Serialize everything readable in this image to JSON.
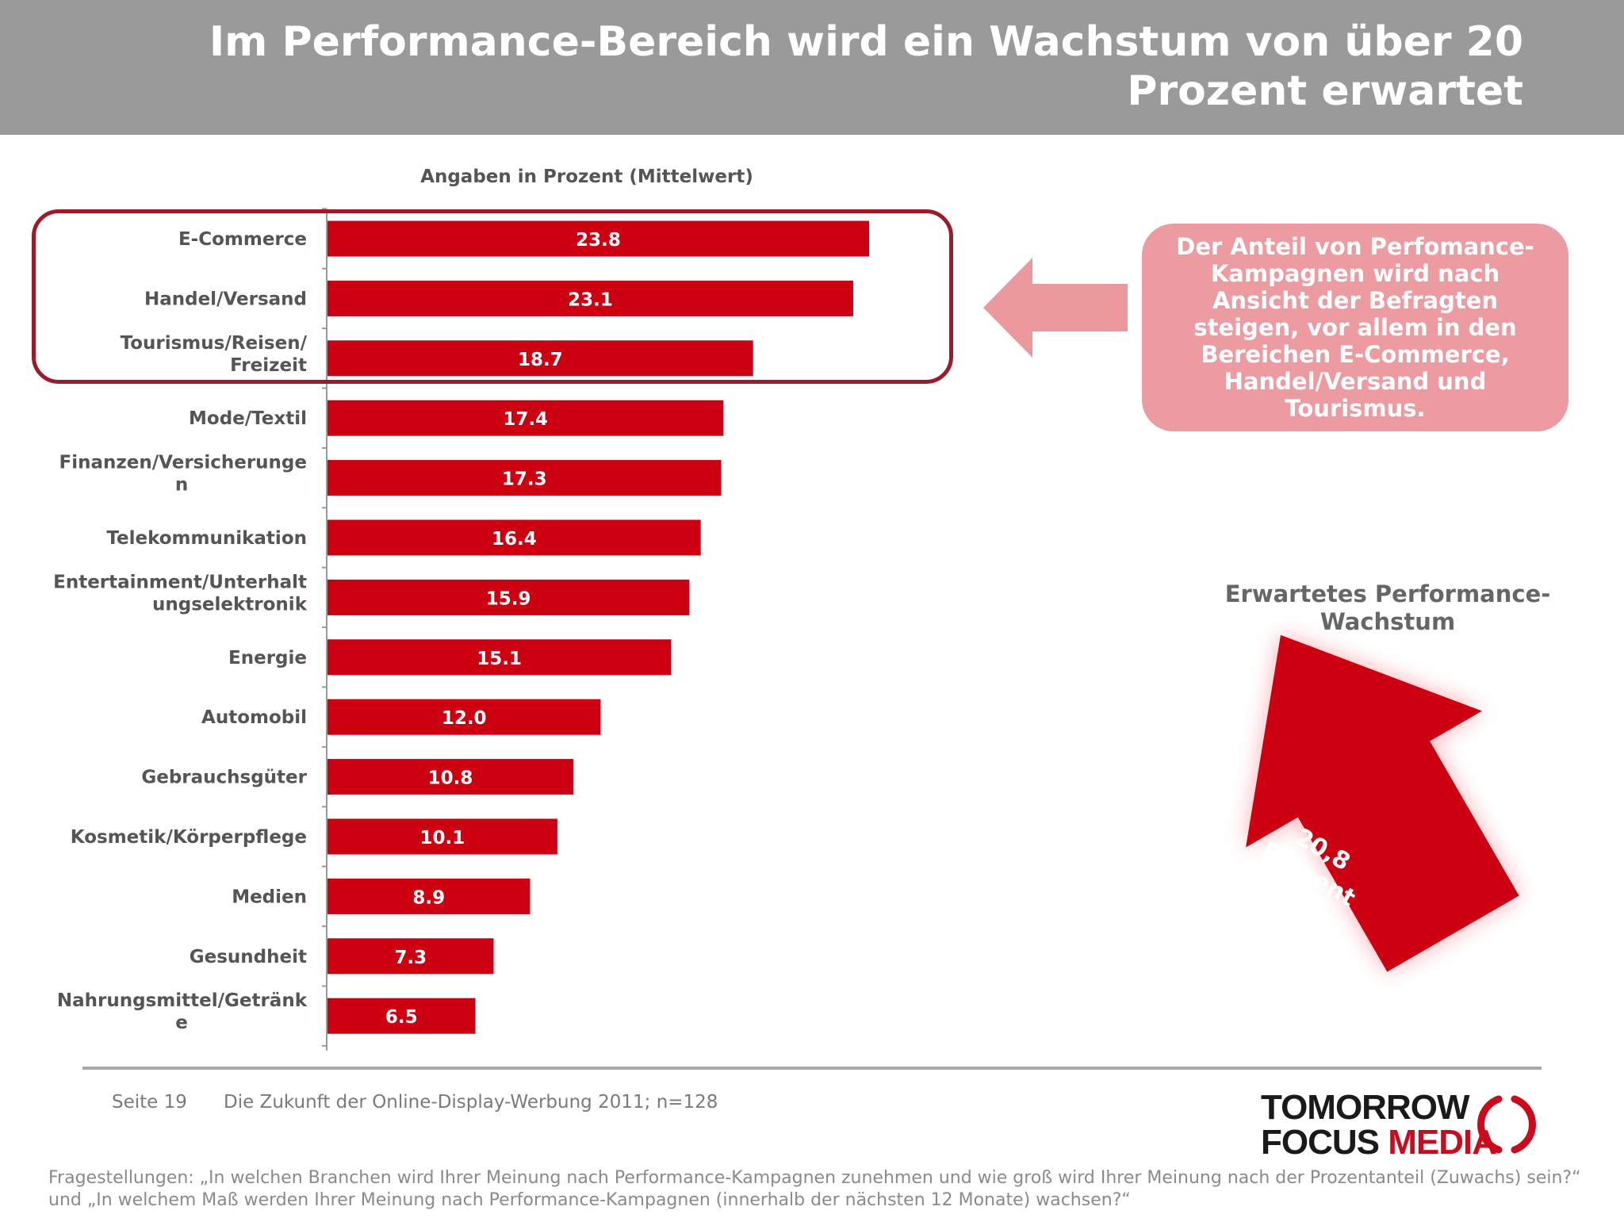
{
  "header": {
    "title": "Im Performance-Bereich wird ein Wachstum von über 20 Prozent erwartet"
  },
  "chart_data": {
    "type": "bar",
    "orientation": "horizontal",
    "title": "Angaben in Prozent (Mittelwert)",
    "categories": [
      "E-Commerce",
      "Handel/Versand",
      "Tourismus/Reisen/Freizeit",
      "Mode/Textil",
      "Finanzen/Versicherungen",
      "Telekommunikation",
      "Entertainment/Unterhaltungselektronik",
      "Energie",
      "Automobil",
      "Gebrauchsgüter",
      "Kosmetik/Körperpflege",
      "Medien",
      "Gesundheit",
      "Nahrungsmittel/Getränke"
    ],
    "category_label_lines": [
      [
        "E-Commerce"
      ],
      [
        "Handel/Versand"
      ],
      [
        "Tourismus/Reisen/",
        "Freizeit"
      ],
      [
        "Mode/Textil"
      ],
      [
        "Finanzen/Versicherunge",
        "n"
      ],
      [
        "Telekommunikation"
      ],
      [
        "Entertainment/Unterhalt",
        "ungselektronik"
      ],
      [
        "Energie"
      ],
      [
        "Automobil"
      ],
      [
        "Gebrauchsgüter"
      ],
      [
        "Kosmetik/Körperpflege"
      ],
      [
        "Medien"
      ],
      [
        "Gesundheit"
      ],
      [
        "Nahrungsmittel/Getränk",
        "e"
      ]
    ],
    "values": [
      23.8,
      23.1,
      18.7,
      17.4,
      17.3,
      16.4,
      15.9,
      15.1,
      12.0,
      10.8,
      10.1,
      8.9,
      7.3,
      6.5
    ],
    "value_labels": [
      "23.8",
      "23.1",
      "18.7",
      "17.4",
      "17.3",
      "16.4",
      "15.9",
      "15.1",
      "12.0",
      "10.8",
      "10.1",
      "8.9",
      "7.3",
      "6.5"
    ],
    "xlim": [
      0,
      27
    ],
    "bar_color": "#cc0010",
    "highlighted_categories": [
      "E-Commerce",
      "Handel/Versand",
      "Tourismus/Reisen/Freizeit"
    ],
    "legend": "none",
    "grid": false
  },
  "callout": {
    "text": "Der Anteil von Perfomance-Kampagnen wird nach Ansicht der Befragten steigen, vor allem in den Bereichen E-Commerce, Handel/Versand und Tourismus.",
    "color": "#ec9ca0"
  },
  "growth": {
    "label": "Erwartetes Performance-Wachstum",
    "arrow_value": "20,8",
    "arrow_unit": "Prozent",
    "arrow_color": "#cc0010"
  },
  "footer": {
    "page": "Seite 19",
    "source": "Die Zukunft der Online-Display-Werbung 2011; n=128"
  },
  "logo": {
    "line1": "TOMORROW",
    "line2_a": "FOCUS",
    "line2_b": "MEDIA"
  },
  "question": "Fragestellungen: „In welchen Branchen wird Ihrer Meinung nach Performance-Kampagnen zunehmen und wie groß wird Ihrer Meinung nach der Prozentanteil (Zuwachs) sein?“ und „In welchem Maß werden Ihrer Meinung nach Performance-Kampagnen (innerhalb der nächsten 12 Monate) wachsen?“"
}
